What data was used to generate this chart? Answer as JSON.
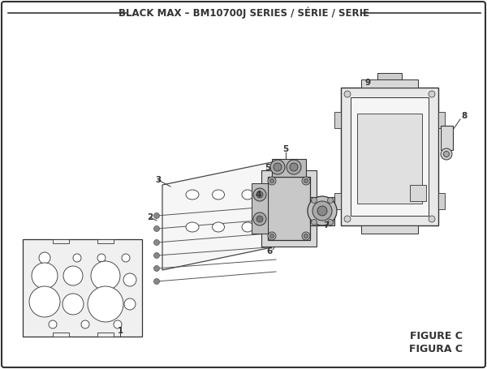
{
  "title": "BLACK MAX – BM10700J SERIES / SÉRIE / SERIE",
  "figure_label": "FIGURE C",
  "figura_label": "FIGURA C",
  "bg_color": "#ffffff",
  "line_color": "#333333",
  "title_fontsize": 8.5,
  "fig_label_fontsize": 9,
  "part_label_fontsize": 7.5
}
